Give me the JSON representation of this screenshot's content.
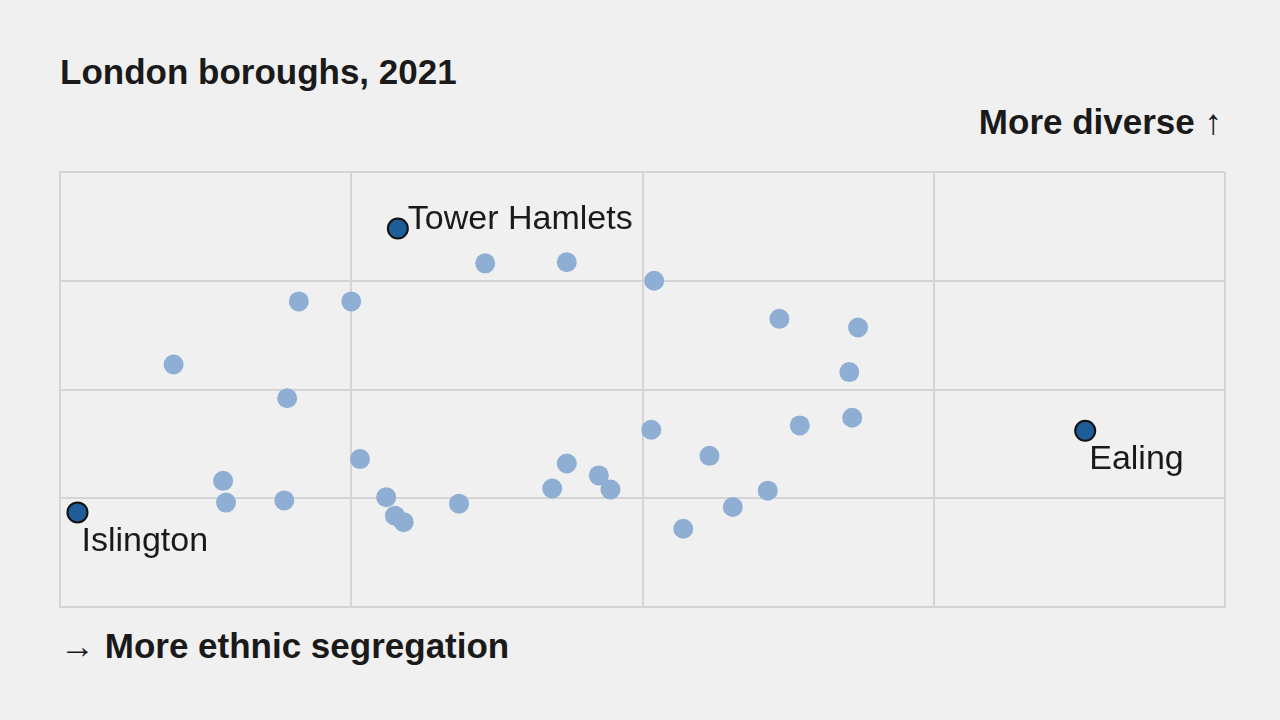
{
  "chart_data": {
    "type": "scatter",
    "title": "London boroughs, 2021",
    "x_label": "→ More ethnic segregation",
    "y_label": "More diverse ↑",
    "xlim": [
      0,
      4
    ],
    "xticks": [
      0,
      1,
      2,
      3,
      4
    ],
    "ylim": [
      0,
      4
    ],
    "yticks": [
      0,
      1,
      2,
      3,
      4
    ],
    "grid": true,
    "tick_labels": false,
    "series": [
      {
        "color": "#8eaed3",
        "marker": "circle",
        "x": [
          1.46,
          1.74,
          2.04,
          0.82,
          1.0,
          2.47,
          2.74,
          0.39,
          2.71,
          0.78,
          2.72,
          2.54,
          2.03,
          1.03,
          2.23,
          1.74,
          1.85,
          0.56,
          1.69,
          1.89,
          2.43,
          1.12,
          0.57,
          0.77,
          1.37,
          2.31,
          1.15,
          1.18,
          2.14
        ],
        "values": [
          3.16,
          3.17,
          3.0,
          2.81,
          2.81,
          2.65,
          2.57,
          2.23,
          2.16,
          1.92,
          1.74,
          1.67,
          1.63,
          1.36,
          1.39,
          1.32,
          1.21,
          1.16,
          1.09,
          1.08,
          1.07,
          1.01,
          0.96,
          0.98,
          0.95,
          0.92,
          0.84,
          0.78,
          0.72
        ]
      },
      {
        "color": "#1f5d99",
        "marker": "circle",
        "x": [
          1.16,
          3.52,
          0.06
        ],
        "values": [
          3.48,
          1.62,
          0.87
        ],
        "labels": [
          "Tower Hamlets",
          "Ealing",
          "Islington"
        ]
      }
    ]
  }
}
